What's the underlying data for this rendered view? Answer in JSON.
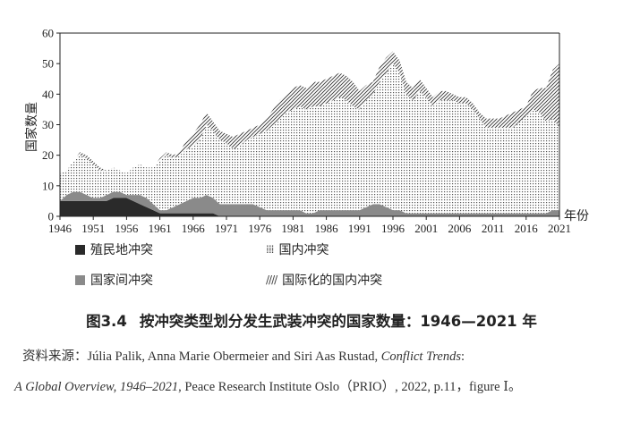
{
  "chart_data": {
    "type": "area",
    "stacked": true,
    "ylabel": "国家数量",
    "xlabel": "年份",
    "ylim": [
      0,
      60
    ],
    "yticks": [
      0,
      10,
      20,
      30,
      40,
      50,
      60
    ],
    "xlim": [
      1946,
      2021
    ],
    "xticks": [
      1946,
      1951,
      1956,
      1961,
      1966,
      1971,
      1976,
      1981,
      1986,
      1991,
      1996,
      2001,
      2006,
      2011,
      2016,
      2021
    ],
    "x_start": 1946,
    "series": [
      {
        "name": "殖民地冲突",
        "pattern": "solid-dark",
        "values": [
          5,
          5,
          5,
          5,
          5,
          5,
          5,
          5,
          6,
          6,
          6,
          5,
          4,
          3,
          2,
          1,
          1,
          1,
          1,
          1,
          1,
          1,
          1,
          1,
          0,
          0,
          0,
          0,
          0,
          0,
          0,
          0,
          0,
          0,
          0,
          0,
          0,
          0,
          0,
          0,
          0,
          0,
          0,
          0,
          0,
          0,
          0,
          0,
          0,
          0,
          0,
          0,
          0,
          0,
          0,
          0,
          0,
          0,
          0,
          0,
          0,
          0,
          0,
          0,
          0,
          0,
          0,
          0,
          0,
          0,
          0,
          0,
          0,
          0,
          0,
          0
        ]
      },
      {
        "name": "国家间冲突",
        "pattern": "solid-grey",
        "values": [
          0,
          2,
          3,
          3,
          2,
          1,
          1,
          2,
          2,
          2,
          1,
          2,
          3,
          3,
          2,
          1,
          1,
          2,
          3,
          4,
          5,
          5,
          6,
          5,
          4,
          4,
          4,
          4,
          4,
          4,
          3,
          2,
          2,
          2,
          2,
          2,
          2,
          1,
          1,
          2,
          2,
          2,
          2,
          2,
          2,
          2,
          3,
          4,
          4,
          3,
          2,
          2,
          1,
          1,
          1,
          1,
          1,
          1,
          1,
          1,
          1,
          1,
          1,
          1,
          1,
          1,
          1,
          1,
          1,
          1,
          1,
          1,
          1,
          1,
          2,
          2
        ]
      },
      {
        "name": "国内冲突",
        "pattern": "dotted",
        "values": [
          9,
          8,
          10,
          12,
          12,
          11,
          9,
          8,
          8,
          7,
          7,
          9,
          10,
          10,
          12,
          16,
          18,
          16,
          16,
          17,
          17,
          19,
          23,
          22,
          21,
          20,
          18,
          19,
          21,
          22,
          24,
          26,
          28,
          30,
          32,
          33,
          34,
          34,
          35,
          34,
          35,
          36,
          37,
          36,
          34,
          33,
          35,
          36,
          40,
          44,
          48,
          45,
          39,
          37,
          40,
          38,
          35,
          37,
          37,
          37,
          36,
          36,
          34,
          31,
          28,
          28,
          28,
          28,
          28,
          30,
          32,
          34,
          33,
          30,
          30,
          27
        ]
      },
      {
        "name": "国际化的国内冲突",
        "pattern": "hatched",
        "values": [
          0,
          0,
          0,
          1,
          1,
          1,
          1,
          0,
          0,
          0,
          0,
          0,
          0,
          0,
          0,
          1,
          1,
          1,
          1,
          3,
          4,
          5,
          4,
          3,
          3,
          3,
          4,
          4,
          3,
          3,
          3,
          4,
          5,
          6,
          6,
          7,
          7,
          7,
          8,
          8,
          8,
          8,
          8,
          8,
          8,
          6,
          5,
          4,
          5,
          5,
          4,
          4,
          4,
          4,
          4,
          3,
          3,
          3,
          3,
          2,
          2,
          2,
          2,
          2,
          3,
          3,
          3,
          4,
          5,
          4,
          3,
          6,
          8,
          11,
          16,
          21
        ]
      }
    ],
    "legend_placement": "bottom"
  },
  "legend": {
    "colonial": "殖民地冲突",
    "domestic": "国内冲突",
    "interstate": "国家间冲突",
    "internationalized": "国际化的国内冲突",
    "domestic_glyph": "⁞⁞⁞",
    "internationalized_glyph": "////"
  },
  "caption": {
    "number": "图3.4",
    "title": "按冲突类型划分发生武装冲突的国家数量：1946—2021 年"
  },
  "source": {
    "label": "资料来源：",
    "authors": "Júlia Palik, Anna Marie Obermeier and Siri Aas Rustad, ",
    "work_title_1": "Conflict Trends",
    "work_title_sep": ": ",
    "work_title_2": "A Global Overview, 1946–2021",
    "details": ", Peace Research Institute Oslo（PRIO）, 2022, p.11，figure Ⅰ。"
  },
  "colors": {
    "colonial": "#2a2a2a",
    "interstate": "#8a8a8a",
    "dots": "#555555",
    "hatch": "#333333",
    "axis": "#222222"
  }
}
